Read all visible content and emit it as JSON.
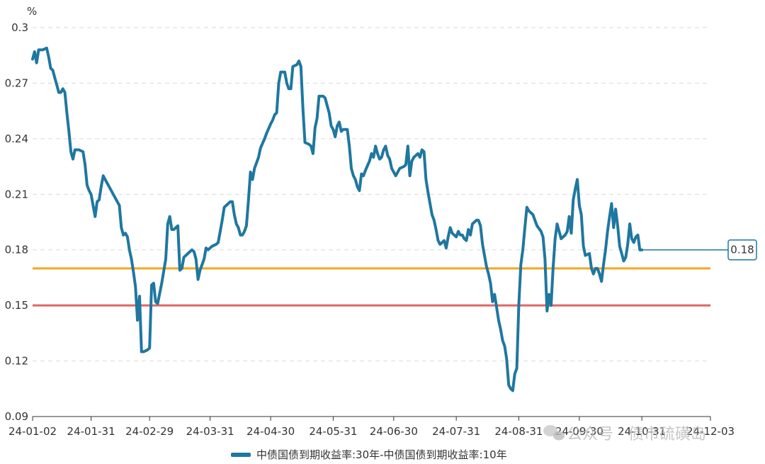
{
  "chart_data": {
    "type": "line",
    "unit_label": "%",
    "ylim": [
      0.09,
      0.3
    ],
    "yticks": [
      0.09,
      0.12,
      0.15,
      0.18,
      0.21,
      0.24,
      0.27,
      0.3
    ],
    "ytick_labels": [
      "0.09",
      "0.12",
      "0.15",
      "0.18",
      "0.21",
      "0.24",
      "0.27",
      "0.3"
    ],
    "grid": true,
    "x_day_range": [
      0,
      336
    ],
    "xticks": [
      {
        "day": 0,
        "label": "24-01-02"
      },
      {
        "day": 29,
        "label": "24-01-31"
      },
      {
        "day": 58,
        "label": "24-02-29"
      },
      {
        "day": 88,
        "label": "24-03-31"
      },
      {
        "day": 118,
        "label": "24-04-30"
      },
      {
        "day": 149,
        "label": "24-05-31"
      },
      {
        "day": 179,
        "label": "24-06-30"
      },
      {
        "day": 210,
        "label": "24-07-31"
      },
      {
        "day": 241,
        "label": "24-08-31"
      },
      {
        "day": 271,
        "label": "24-09-30"
      },
      {
        "day": 302,
        "label": "24-10-31"
      },
      {
        "day": 336,
        "label": "24-12-03"
      }
    ],
    "reference_lines": [
      {
        "value": 0.17,
        "color": "#f5a623"
      },
      {
        "value": 0.15,
        "color": "#e06666"
      }
    ],
    "series": [
      {
        "name": "中债国债到期收益率:30年-中债国债到期收益率:10年",
        "color": "#1f77a0",
        "last_value_label": "0.18",
        "points": [
          [
            0,
            0.283
          ],
          [
            1,
            0.287
          ],
          [
            2,
            0.281
          ],
          [
            3,
            0.288
          ],
          [
            5,
            0.288
          ],
          [
            7,
            0.289
          ],
          [
            8,
            0.284
          ],
          [
            9,
            0.278
          ],
          [
            10,
            0.277
          ],
          [
            11,
            0.273
          ],
          [
            12,
            0.269
          ],
          [
            13,
            0.265
          ],
          [
            14,
            0.265
          ],
          [
            15,
            0.267
          ],
          [
            16,
            0.265
          ],
          [
            17,
            0.254
          ],
          [
            18,
            0.244
          ],
          [
            19,
            0.233
          ],
          [
            20,
            0.229
          ],
          [
            21,
            0.234
          ],
          [
            23,
            0.234
          ],
          [
            25,
            0.233
          ],
          [
            26,
            0.226
          ],
          [
            27,
            0.215
          ],
          [
            28,
            0.212
          ],
          [
            29,
            0.21
          ],
          [
            30,
            0.204
          ],
          [
            31,
            0.198
          ],
          [
            32,
            0.206
          ],
          [
            33,
            0.207
          ],
          [
            34,
            0.214
          ],
          [
            35,
            0.22
          ],
          [
            36,
            0.218
          ],
          [
            38,
            0.214
          ],
          [
            40,
            0.21
          ],
          [
            42,
            0.206
          ],
          [
            43,
            0.204
          ],
          [
            44,
            0.192
          ],
          [
            45,
            0.188
          ],
          [
            46,
            0.189
          ],
          [
            47,
            0.187
          ],
          [
            48,
            0.18
          ],
          [
            49,
            0.175
          ],
          [
            50,
            0.168
          ],
          [
            51,
            0.16
          ],
          [
            52,
            0.142
          ],
          [
            53,
            0.155
          ],
          [
            54,
            0.125
          ],
          [
            55,
            0.125
          ],
          [
            57,
            0.126
          ],
          [
            58,
            0.127
          ],
          [
            59,
            0.161
          ],
          [
            60,
            0.162
          ],
          [
            61,
            0.152
          ],
          [
            62,
            0.151
          ],
          [
            64,
            0.162
          ],
          [
            66,
            0.175
          ],
          [
            67,
            0.194
          ],
          [
            68,
            0.198
          ],
          [
            69,
            0.191
          ],
          [
            70,
            0.191
          ],
          [
            72,
            0.193
          ],
          [
            73,
            0.169
          ],
          [
            74,
            0.17
          ],
          [
            75,
            0.176
          ],
          [
            77,
            0.178
          ],
          [
            79,
            0.18
          ],
          [
            80,
            0.179
          ],
          [
            81,
            0.175
          ],
          [
            82,
            0.164
          ],
          [
            83,
            0.169
          ],
          [
            84,
            0.172
          ],
          [
            85,
            0.175
          ],
          [
            86,
            0.181
          ],
          [
            87,
            0.18
          ],
          [
            89,
            0.182
          ],
          [
            91,
            0.183
          ],
          [
            92,
            0.184
          ],
          [
            93,
            0.19
          ],
          [
            94,
            0.196
          ],
          [
            95,
            0.203
          ],
          [
            96,
            0.204
          ],
          [
            98,
            0.206
          ],
          [
            99,
            0.206
          ],
          [
            100,
            0.199
          ],
          [
            101,
            0.194
          ],
          [
            102,
            0.192
          ],
          [
            103,
            0.188
          ],
          [
            104,
            0.188
          ],
          [
            105,
            0.19
          ],
          [
            106,
            0.193
          ],
          [
            107,
            0.207
          ],
          [
            108,
            0.222
          ],
          [
            109,
            0.218
          ],
          [
            110,
            0.224
          ],
          [
            112,
            0.23
          ],
          [
            113,
            0.235
          ],
          [
            115,
            0.24
          ],
          [
            116,
            0.243
          ],
          [
            118,
            0.248
          ],
          [
            119,
            0.25
          ],
          [
            120,
            0.253
          ],
          [
            121,
            0.254
          ],
          [
            122,
            0.27
          ],
          [
            123,
            0.276
          ],
          [
            125,
            0.276
          ],
          [
            126,
            0.27
          ],
          [
            127,
            0.267
          ],
          [
            128,
            0.267
          ],
          [
            129,
            0.279
          ],
          [
            131,
            0.28
          ],
          [
            132,
            0.282
          ],
          [
            133,
            0.279
          ],
          [
            134,
            0.256
          ],
          [
            135,
            0.238
          ],
          [
            137,
            0.237
          ],
          [
            138,
            0.236
          ],
          [
            139,
            0.232
          ],
          [
            140,
            0.246
          ],
          [
            141,
            0.251
          ],
          [
            142,
            0.263
          ],
          [
            144,
            0.263
          ],
          [
            145,
            0.262
          ],
          [
            146,
            0.258
          ],
          [
            147,
            0.254
          ],
          [
            148,
            0.247
          ],
          [
            149,
            0.245
          ],
          [
            150,
            0.241
          ],
          [
            151,
            0.247
          ],
          [
            152,
            0.249
          ],
          [
            153,
            0.244
          ],
          [
            154,
            0.245
          ],
          [
            156,
            0.245
          ],
          [
            157,
            0.236
          ],
          [
            158,
            0.224
          ],
          [
            159,
            0.22
          ],
          [
            160,
            0.218
          ],
          [
            161,
            0.214
          ],
          [
            162,
            0.212
          ],
          [
            163,
            0.221
          ],
          [
            164,
            0.22
          ],
          [
            165,
            0.223
          ],
          [
            167,
            0.228
          ],
          [
            168,
            0.232
          ],
          [
            169,
            0.23
          ],
          [
            170,
            0.236
          ],
          [
            171,
            0.232
          ],
          [
            172,
            0.229
          ],
          [
            173,
            0.23
          ],
          [
            174,
            0.234
          ],
          [
            175,
            0.236
          ],
          [
            176,
            0.231
          ],
          [
            177,
            0.229
          ],
          [
            178,
            0.224
          ],
          [
            179,
            0.222
          ],
          [
            180,
            0.22
          ],
          [
            182,
            0.224
          ],
          [
            184,
            0.225
          ],
          [
            185,
            0.226
          ],
          [
            186,
            0.236
          ],
          [
            187,
            0.22
          ],
          [
            188,
            0.228
          ],
          [
            189,
            0.23
          ],
          [
            191,
            0.232
          ],
          [
            192,
            0.23
          ],
          [
            193,
            0.234
          ],
          [
            194,
            0.233
          ],
          [
            195,
            0.218
          ],
          [
            196,
            0.211
          ],
          [
            197,
            0.205
          ],
          [
            198,
            0.199
          ],
          [
            199,
            0.196
          ],
          [
            200,
            0.191
          ],
          [
            201,
            0.185
          ],
          [
            202,
            0.183
          ],
          [
            203,
            0.184
          ],
          [
            204,
            0.185
          ],
          [
            205,
            0.181
          ],
          [
            206,
            0.187
          ],
          [
            207,
            0.192
          ],
          [
            208,
            0.189
          ],
          [
            210,
            0.187
          ],
          [
            211,
            0.19
          ],
          [
            212,
            0.188
          ],
          [
            213,
            0.188
          ],
          [
            214,
            0.186
          ],
          [
            215,
            0.185
          ],
          [
            216,
            0.191
          ],
          [
            217,
            0.188
          ],
          [
            218,
            0.194
          ],
          [
            220,
            0.196
          ],
          [
            221,
            0.196
          ],
          [
            222,
            0.193
          ],
          [
            223,
            0.183
          ],
          [
            224,
            0.177
          ],
          [
            225,
            0.171
          ],
          [
            226,
            0.167
          ],
          [
            227,
            0.162
          ],
          [
            228,
            0.152
          ],
          [
            229,
            0.156
          ],
          [
            230,
            0.149
          ],
          [
            231,
            0.142
          ],
          [
            232,
            0.137
          ],
          [
            233,
            0.131
          ],
          [
            234,
            0.128
          ],
          [
            235,
            0.121
          ],
          [
            236,
            0.107
          ],
          [
            237,
            0.105
          ],
          [
            238,
            0.104
          ],
          [
            239,
            0.113
          ],
          [
            240,
            0.116
          ],
          [
            241,
            0.15
          ],
          [
            242,
            0.172
          ],
          [
            243,
            0.18
          ],
          [
            244,
            0.192
          ],
          [
            245,
            0.203
          ],
          [
            246,
            0.201
          ],
          [
            248,
            0.199
          ],
          [
            249,
            0.196
          ],
          [
            250,
            0.193
          ],
          [
            252,
            0.19
          ],
          [
            253,
            0.187
          ],
          [
            254,
            0.175
          ],
          [
            255,
            0.147
          ],
          [
            256,
            0.156
          ],
          [
            257,
            0.15
          ],
          [
            258,
            0.17
          ],
          [
            259,
            0.186
          ],
          [
            260,
            0.194
          ],
          [
            261,
            0.19
          ],
          [
            262,
            0.186
          ],
          [
            263,
            0.187
          ],
          [
            264,
            0.188
          ],
          [
            265,
            0.19
          ],
          [
            266,
            0.198
          ],
          [
            267,
            0.189
          ],
          [
            268,
            0.207
          ],
          [
            269,
            0.213
          ],
          [
            270,
            0.218
          ],
          [
            271,
            0.204
          ],
          [
            272,
            0.199
          ],
          [
            273,
            0.182
          ],
          [
            274,
            0.177
          ],
          [
            276,
            0.178
          ],
          [
            277,
            0.17
          ],
          [
            278,
            0.167
          ],
          [
            279,
            0.17
          ],
          [
            280,
            0.17
          ],
          [
            281,
            0.167
          ],
          [
            282,
            0.163
          ],
          [
            283,
            0.172
          ],
          [
            284,
            0.18
          ],
          [
            285,
            0.19
          ],
          [
            286,
            0.198
          ],
          [
            287,
            0.205
          ],
          [
            288,
            0.192
          ],
          [
            289,
            0.202
          ],
          [
            290,
            0.193
          ],
          [
            291,
            0.182
          ],
          [
            292,
            0.178
          ],
          [
            293,
            0.174
          ],
          [
            294,
            0.176
          ],
          [
            295,
            0.183
          ],
          [
            296,
            0.194
          ],
          [
            297,
            0.186
          ],
          [
            298,
            0.184
          ],
          [
            299,
            0.187
          ],
          [
            300,
            0.188
          ],
          [
            301,
            0.18
          ],
          [
            302,
            0.18
          ]
        ]
      }
    ],
    "legend": {
      "position": "bottom-center",
      "label": "中债国债到期收益率:30年-中债国债到期收益率:10年"
    }
  },
  "watermark": {
    "text": "公众号 · 债市硫磺岛"
  }
}
